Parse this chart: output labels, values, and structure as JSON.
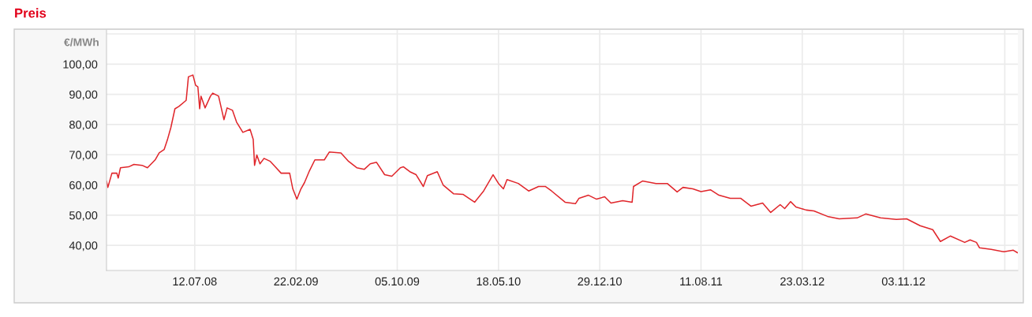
{
  "chart_data": {
    "type": "line",
    "title": "Preis",
    "ylabel": "€/MWh",
    "x": [
      "2007-12-29",
      "2008-01-01",
      "2008-01-10",
      "2008-01-21",
      "2008-01-24",
      "2008-01-29",
      "2008-02-16",
      "2008-02-28",
      "2008-03-17",
      "2008-03-29",
      "2008-04-15",
      "2008-04-24",
      "2008-05-05",
      "2008-05-12",
      "2008-05-20",
      "2008-05-29",
      "2008-06-07",
      "2008-06-23",
      "2008-06-28",
      "2008-07-08",
      "2008-07-14",
      "2008-07-19",
      "2008-07-23",
      "2008-07-26",
      "2008-08-04",
      "2008-08-16",
      "2008-08-21",
      "2008-09-03",
      "2008-09-15",
      "2008-09-22",
      "2008-10-04",
      "2008-10-13",
      "2008-10-27",
      "2008-11-12",
      "2008-11-19",
      "2008-11-22",
      "2008-11-27",
      "2008-12-04",
      "2008-12-13",
      "2008-12-27",
      "2009-01-07",
      "2009-01-20",
      "2009-02-08",
      "2009-02-15",
      "2009-02-24",
      "2009-03-05",
      "2009-03-13",
      "2009-03-24",
      "2009-04-05",
      "2009-04-26",
      "2009-05-07",
      "2009-06-02",
      "2009-06-19",
      "2009-07-07",
      "2009-07-24",
      "2009-08-06",
      "2009-08-20",
      "2009-09-07",
      "2009-09-23",
      "2009-10-12",
      "2009-10-19",
      "2009-11-02",
      "2009-11-16",
      "2009-12-02",
      "2009-12-11",
      "2010-01-02",
      "2010-01-15",
      "2010-02-07",
      "2010-02-28",
      "2010-03-26",
      "2010-04-15",
      "2010-05-06",
      "2010-05-18",
      "2010-05-29",
      "2010-06-06",
      "2010-07-01",
      "2010-07-24",
      "2010-08-15",
      "2010-08-30",
      "2010-09-13",
      "2010-10-13",
      "2010-11-05",
      "2010-11-13",
      "2010-12-04",
      "2010-12-22",
      "2011-01-09",
      "2011-01-23",
      "2011-02-18",
      "2011-03-11",
      "2011-03-14",
      "2011-04-03",
      "2011-05-03",
      "2011-05-28",
      "2011-06-19",
      "2011-07-02",
      "2011-07-24",
      "2011-08-11",
      "2011-08-25",
      "2011-09-01",
      "2011-09-20",
      "2011-10-15",
      "2011-11-07",
      "2011-11-30",
      "2011-12-26",
      "2012-01-13",
      "2012-02-03",
      "2012-02-13",
      "2012-02-26",
      "2012-03-09",
      "2012-04-01",
      "2012-04-18",
      "2012-05-18",
      "2012-06-13",
      "2012-07-23",
      "2012-08-11",
      "2012-09-13",
      "2012-10-18",
      "2012-11-10",
      "2012-12-10",
      "2013-01-07",
      "2013-01-24",
      "2013-02-15",
      "2013-03-19",
      "2013-03-31",
      "2013-04-14",
      "2013-04-21",
      "2013-05-17",
      "2013-06-14",
      "2013-07-05",
      "2013-07-14"
    ],
    "series": [
      {
        "color": "#e0262b",
        "values": [
          61.3,
          59.2,
          63.9,
          63.9,
          62.3,
          65.7,
          66.0,
          66.8,
          66.5,
          65.7,
          68.3,
          70.6,
          71.7,
          74.8,
          79.0,
          85.2,
          86.0,
          88.0,
          95.8,
          96.4,
          93.0,
          92.5,
          85.2,
          89.4,
          85.5,
          89.4,
          90.4,
          89.4,
          81.6,
          85.5,
          84.7,
          80.8,
          77.4,
          78.4,
          75.1,
          66.5,
          69.9,
          67.0,
          68.8,
          67.8,
          66.0,
          63.9,
          63.9,
          58.7,
          55.3,
          58.7,
          60.8,
          64.7,
          68.3,
          68.3,
          70.9,
          70.6,
          67.8,
          65.7,
          65.2,
          67.0,
          67.5,
          63.4,
          62.9,
          65.7,
          66.0,
          64.4,
          63.4,
          59.5,
          63.1,
          64.4,
          60.0,
          57.1,
          56.9,
          54.3,
          58.0,
          63.4,
          60.5,
          58.7,
          61.8,
          60.5,
          58.0,
          59.5,
          59.5,
          58.0,
          54.3,
          53.8,
          55.6,
          56.6,
          55.3,
          56.1,
          54.0,
          54.8,
          54.3,
          59.5,
          61.3,
          60.5,
          60.5,
          57.7,
          59.2,
          58.7,
          57.8,
          58.2,
          58.4,
          56.6,
          55.6,
          55.6,
          53.0,
          54.0,
          50.9,
          53.5,
          52.2,
          54.5,
          52.7,
          51.7,
          51.4,
          49.6,
          48.8,
          49.1,
          50.4,
          49.1,
          48.6,
          48.8,
          46.5,
          45.2,
          41.3,
          43.1,
          41.0,
          41.8,
          41.0,
          39.2,
          38.7,
          37.9,
          38.4,
          37.6
        ]
      }
    ],
    "xlim": [
      "2007-12-29",
      "2013-07-15"
    ],
    "xticks": [
      {
        "value": "2008-07-12",
        "label": "12.07.08"
      },
      {
        "value": "2009-02-22",
        "label": "22.02.09"
      },
      {
        "value": "2009-10-05",
        "label": "05.10.09"
      },
      {
        "value": "2010-05-18",
        "label": "18.05.10"
      },
      {
        "value": "2010-12-29",
        "label": "29.12.10"
      },
      {
        "value": "2011-08-11",
        "label": "11.08.11"
      },
      {
        "value": "2012-03-23",
        "label": "23.03.12"
      },
      {
        "value": "2012-11-03",
        "label": "03.11.12"
      },
      {
        "value": "2013-06-16",
        "label": null
      }
    ],
    "ylim": [
      31.7,
      111.3
    ],
    "yticks": [
      {
        "value": 40,
        "label": "40,00"
      },
      {
        "value": 50,
        "label": "50,00"
      },
      {
        "value": 60,
        "label": "60,00"
      },
      {
        "value": 70,
        "label": "70,00"
      },
      {
        "value": 80,
        "label": "80,00"
      },
      {
        "value": 90,
        "label": "90,00"
      },
      {
        "value": 100,
        "label": "100,00"
      },
      {
        "value": 110,
        "label": null
      }
    ],
    "grid": true,
    "legend": false,
    "marker": "none",
    "line_style": "solid"
  }
}
